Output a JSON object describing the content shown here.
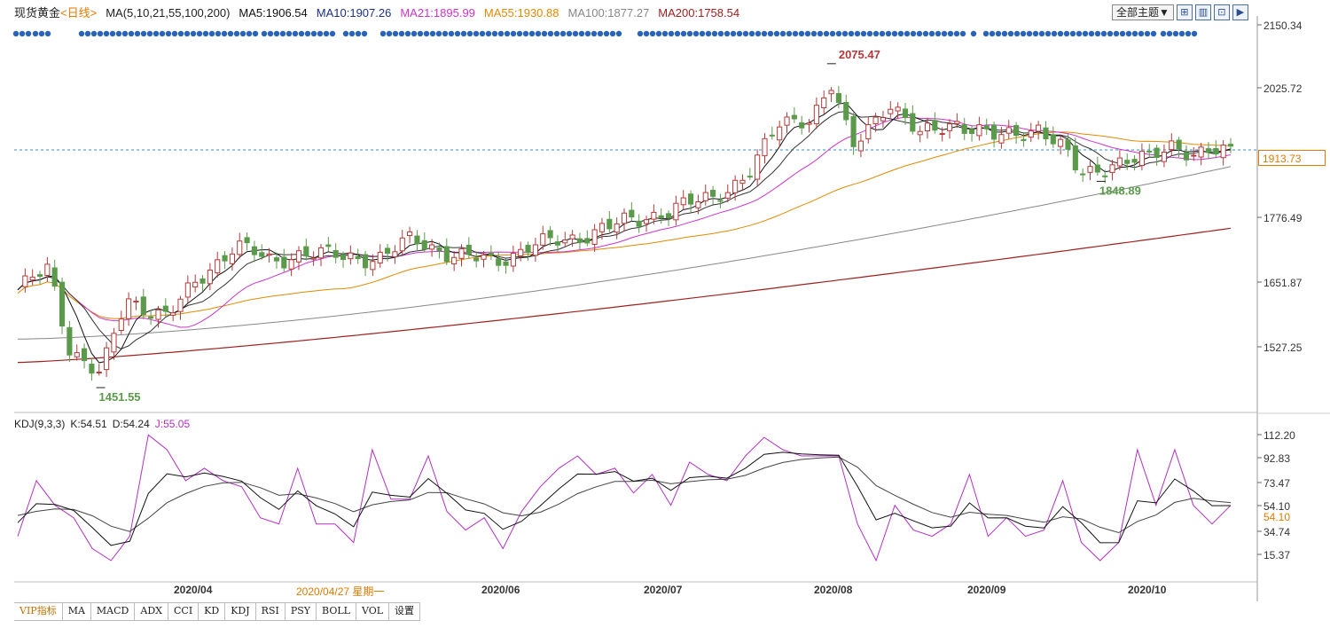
{
  "header": {
    "symbol": "现货黄金",
    "period": "<日线>",
    "ma_params": "MA(5,10,21,55,100,200)",
    "ma5": "MA5:1906.54",
    "ma10": "MA10:1907.26",
    "ma21": "MA21:1895.99",
    "ma55": "MA55:1930.88",
    "ma100": "MA100:1877.27",
    "ma200": "MA200:1758.54"
  },
  "toolbar": {
    "theme_label": "全部主题▼",
    "icons": [
      "grid-icon",
      "table-icon",
      "zoom-icon",
      "next-icon"
    ]
  },
  "kdj_header": {
    "label": "KDJ(9,3,3)",
    "k": "K:54.51",
    "d": "D:54.24",
    "j": "J:55.05"
  },
  "colors": {
    "up": "#b33a3a",
    "down": "#5a9a4a",
    "ma5": "#111111",
    "ma10": "#333333",
    "ma21": "#cc33cc",
    "ma55": "#e08a00",
    "ma100": "#888888",
    "ma200": "#a02020",
    "kdj_k": "#111111",
    "kdj_d": "#444444",
    "kdj_j": "#b030c0",
    "current": "#3a8fc0",
    "event": "#2a64b8"
  },
  "price_axis": [
    "2150.34",
    "2025.72",
    "1776.49",
    "1651.87",
    "1527.25"
  ],
  "current_price": "1913.73",
  "kdj_axis": [
    "112.20",
    "92.83",
    "73.47",
    "54.10",
    "34.74",
    "15.37"
  ],
  "kdj_current": "54.10",
  "date_labels": [
    "2020/04",
    "2020/06",
    "2020/07",
    "2020/08",
    "2020/09",
    "2020/10"
  ],
  "cursor_date": "2020/04/27 星期一",
  "tabs": [
    "VIP指标",
    "MA",
    "MACD",
    "ADX",
    "CCI",
    "KD",
    "KDJ",
    "RSI",
    "PSY",
    "BOLL",
    "VOL",
    "设置"
  ],
  "chart_data": [
    {
      "type": "candlestick",
      "title": "现货黄金 日线",
      "x_range": [
        "2020-03-03",
        "2020-10-23"
      ],
      "ylim": [
        1451.55,
        2150.34
      ],
      "current_price": 1913.73,
      "annotations": [
        {
          "label": "2075.47",
          "date": "2020-08-07",
          "value": 2075.47
        },
        {
          "label": "1451.55",
          "date": "2020-03-19",
          "value": 1451.55
        },
        {
          "label": "1848.89",
          "date": "2020-09-28",
          "value": 1848.89
        }
      ],
      "close_series_approx": [
        {
          "date": "2020-03-03",
          "close": 1640
        },
        {
          "date": "2020-03-09",
          "close": 1680
        },
        {
          "date": "2020-03-13",
          "close": 1530
        },
        {
          "date": "2020-03-19",
          "close": 1475
        },
        {
          "date": "2020-03-24",
          "close": 1620
        },
        {
          "date": "2020-04-01",
          "close": 1590
        },
        {
          "date": "2020-04-09",
          "close": 1680
        },
        {
          "date": "2020-04-14",
          "close": 1730
        },
        {
          "date": "2020-04-21",
          "close": 1690
        },
        {
          "date": "2020-04-27",
          "close": 1715
        },
        {
          "date": "2020-05-05",
          "close": 1700
        },
        {
          "date": "2020-05-12",
          "close": 1705
        },
        {
          "date": "2020-05-18",
          "close": 1735
        },
        {
          "date": "2020-05-26",
          "close": 1710
        },
        {
          "date": "2020-06-03",
          "close": 1690
        },
        {
          "date": "2020-06-10",
          "close": 1730
        },
        {
          "date": "2020-06-17",
          "close": 1730
        },
        {
          "date": "2020-06-24",
          "close": 1765
        },
        {
          "date": "2020-07-01",
          "close": 1770
        },
        {
          "date": "2020-07-08",
          "close": 1805
        },
        {
          "date": "2020-07-15",
          "close": 1810
        },
        {
          "date": "2020-07-22",
          "close": 1870
        },
        {
          "date": "2020-07-28",
          "close": 1955
        },
        {
          "date": "2020-08-03",
          "close": 1975
        },
        {
          "date": "2020-08-07",
          "close": 2035
        },
        {
          "date": "2020-08-11",
          "close": 1910
        },
        {
          "date": "2020-08-18",
          "close": 2005
        },
        {
          "date": "2020-08-24",
          "close": 1935
        },
        {
          "date": "2020-08-31",
          "close": 1965
        },
        {
          "date": "2020-09-08",
          "close": 1930
        },
        {
          "date": "2020-09-16",
          "close": 1955
        },
        {
          "date": "2020-09-21",
          "close": 1905
        },
        {
          "date": "2020-09-24",
          "close": 1860
        },
        {
          "date": "2020-09-30",
          "close": 1885
        },
        {
          "date": "2020-10-07",
          "close": 1890
        },
        {
          "date": "2020-10-12",
          "close": 1925
        },
        {
          "date": "2020-10-16",
          "close": 1900
        },
        {
          "date": "2020-10-23",
          "close": 1905
        }
      ],
      "moving_averages": [
        {
          "name": "MA200",
          "start": 1500,
          "end": 1758.54
        },
        {
          "name": "MA100",
          "start": 1545,
          "end": 1877.27
        },
        {
          "name": "MA55",
          "start": 1595,
          "end": 1930.88
        },
        {
          "name": "MA21",
          "end": 1895.99
        },
        {
          "name": "MA10",
          "end": 1907.26
        },
        {
          "name": "MA5",
          "end": 1906.54
        }
      ]
    },
    {
      "type": "line",
      "title": "KDJ(9,3,3)",
      "ylim": [
        15.37,
        112.2
      ],
      "series": [
        {
          "name": "K",
          "last": 54.51
        },
        {
          "name": "D",
          "last": 54.24
        },
        {
          "name": "J",
          "last": 55.05,
          "values": [
            30,
            75,
            55,
            45,
            20,
            5,
            30,
            112,
            100,
            75,
            85,
            75,
            70,
            45,
            40,
            85,
            40,
            40,
            25,
            100,
            60,
            60,
            95,
            50,
            35,
            45,
            20,
            50,
            70,
            85,
            95,
            80,
            85,
            65,
            80,
            55,
            90,
            80,
            75,
            95,
            110,
            100,
            95,
            95,
            95,
            40,
            10,
            55,
            35,
            30,
            40,
            80,
            30,
            45,
            30,
            35,
            75,
            25,
            5,
            25,
            100,
            55,
            100,
            55,
            40,
            55
          ]
        }
      ]
    }
  ]
}
